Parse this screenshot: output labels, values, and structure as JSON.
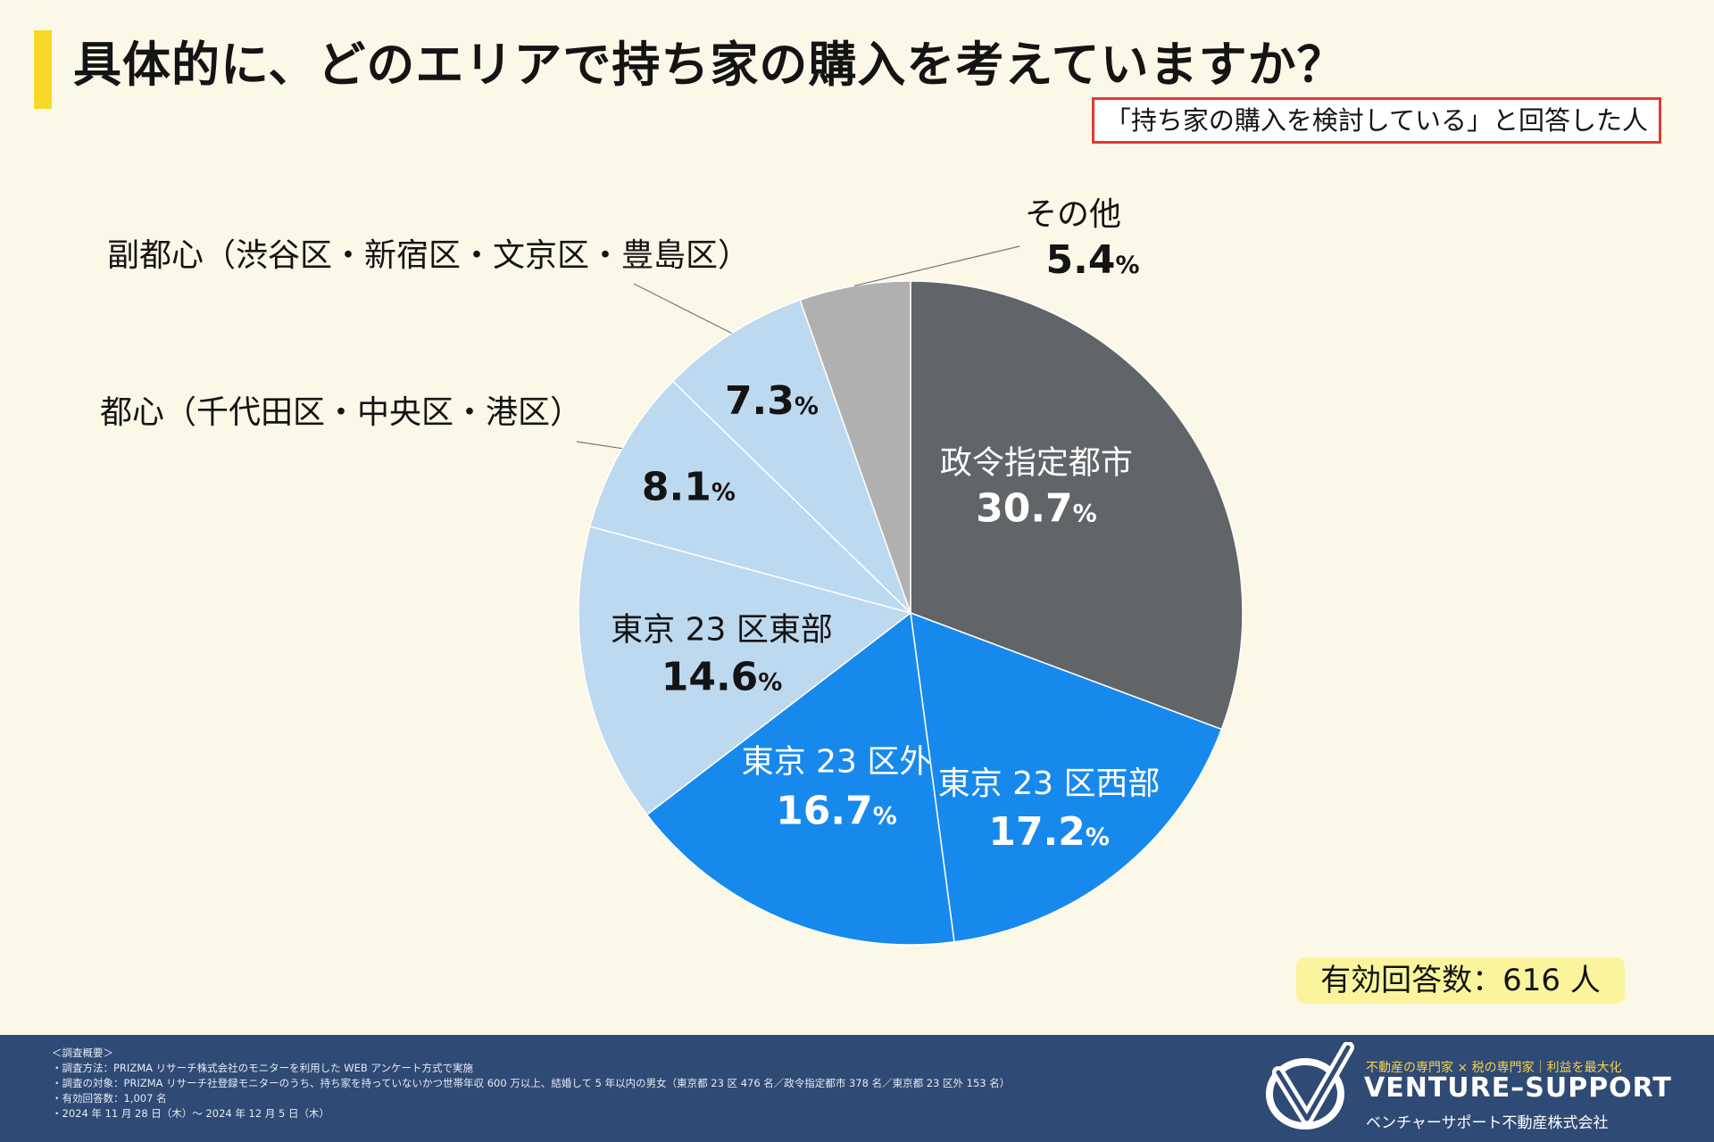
{
  "page": {
    "title": "具体的に、どのエリアで持ち家の購入を考えていますか？",
    "subtitle": "「持ち家の購入を検討している」と回答した人",
    "total": "有効回答数：616 人"
  },
  "chart_data": {
    "type": "pie",
    "title": "具体的に、どのエリアで持ち家の購入を考えていますか？",
    "start": "top (12 o'clock), clockwise",
    "slices": [
      {
        "label": "政令指定都市",
        "value": 30.7,
        "display": "30.7",
        "color": "#626568",
        "text_color": "#ffffff",
        "label_position": "inside"
      },
      {
        "label": "東京 23 区西部",
        "value": 17.2,
        "display": "17.2",
        "color": "#1889ec",
        "text_color": "#ffffff",
        "label_position": "inside"
      },
      {
        "label": "東京 23 区外",
        "value": 16.7,
        "display": "16.7",
        "color": "#1889ec",
        "text_color": "#ffffff",
        "label_position": "inside"
      },
      {
        "label": "東京 23 区東部",
        "value": 14.6,
        "display": "14.6",
        "color": "#bdd9f0",
        "text_color": "#141414",
        "label_position": "inside"
      },
      {
        "label": "都心（千代田区・中央区・港区）",
        "value": 8.1,
        "display": "8.1",
        "color": "#bdd9f0",
        "text_color": "#141414",
        "label_position": "outside"
      },
      {
        "label": "副都心（渋谷区・新宿区・文京区・豊島区）",
        "value": 7.3,
        "display": "7.3",
        "color": "#bdd9f0",
        "text_color": "#141414",
        "label_position": "outside"
      },
      {
        "label": "その他",
        "value": 5.4,
        "display": "5.4",
        "color": "#b0b0b0",
        "text_color": "#141414",
        "label_position": "outside"
      }
    ],
    "percent_suffix": "%",
    "slice_separator_color": "#ffffff"
  },
  "footer": {
    "notes": [
      "＜調査概要＞",
      "・調査方法：PRIZMA リサーチ株式会社のモニターを利用した WEB アンケート方式で実施",
      "・調査の対象：PRIZMA リサーチ社登録モニターのうち、持ち家を持っていないかつ世帯年収 600 万以上、結婚して 5 年以内の男女（東京都 23 区 476 名／政令指定都市 378 名／東京都 23 区外 153 名）",
      "・有効回答数：1,007 名",
      "・2024 年 11 月 28 日（木）〜 2024 年 12 月 5 日（木）"
    ],
    "tagline": "不動産の専門家 × 税の専門家｜利益を最大化",
    "brand": "VENTURE–SUPPORT",
    "company": "ベンチャーサポート不動産株式会社",
    "logo_icon": "v-swoosh-logo-icon",
    "colors": {
      "background": "#2f4a74",
      "tagline": "#f8d24a"
    }
  }
}
